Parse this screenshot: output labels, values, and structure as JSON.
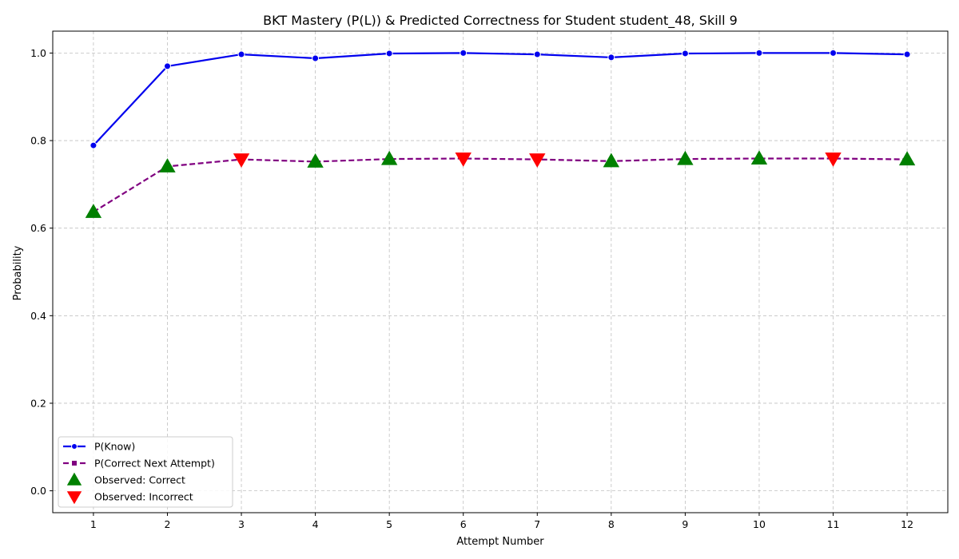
{
  "chart_data": {
    "type": "line",
    "title": "BKT Mastery (P(L)) & Predicted Correctness for Student student_48, Skill 9",
    "xlabel": "Attempt Number",
    "ylabel": "Probability",
    "x": [
      1,
      2,
      3,
      4,
      5,
      6,
      7,
      8,
      9,
      10,
      11,
      12
    ],
    "xlim": [
      0.45,
      12.55
    ],
    "ylim": [
      -0.05,
      1.05
    ],
    "yticks": [
      0.0,
      0.2,
      0.4,
      0.6,
      0.8,
      1.0
    ],
    "ytick_labels": [
      "0.0",
      "0.2",
      "0.4",
      "0.6",
      "0.8",
      "1.0"
    ],
    "grid": true,
    "legend_location": "lower-left",
    "series": [
      {
        "name": "P(Know)",
        "color": "#0000ee",
        "linestyle": "solid",
        "marker": "circle",
        "values": [
          0.789,
          0.97,
          0.997,
          0.988,
          0.999,
          1.0,
          0.997,
          0.99,
          0.999,
          1.0,
          1.0,
          0.997
        ]
      },
      {
        "name": "P(Correct Next Attempt)",
        "color": "#800080",
        "linestyle": "dashed",
        "marker": "square",
        "values": [
          0.637,
          0.741,
          0.757,
          0.752,
          0.758,
          0.759,
          0.757,
          0.753,
          0.758,
          0.759,
          0.759,
          0.757
        ]
      }
    ],
    "observations": [
      {
        "name": "Observed: Correct",
        "color": "#008000",
        "marker": "triangle-up",
        "attempts": [
          1,
          2,
          4,
          5,
          8,
          9,
          10,
          12
        ]
      },
      {
        "name": "Observed: Incorrect",
        "color": "#ff0000",
        "marker": "triangle-down",
        "attempts": [
          3,
          6,
          7,
          11
        ]
      }
    ]
  }
}
